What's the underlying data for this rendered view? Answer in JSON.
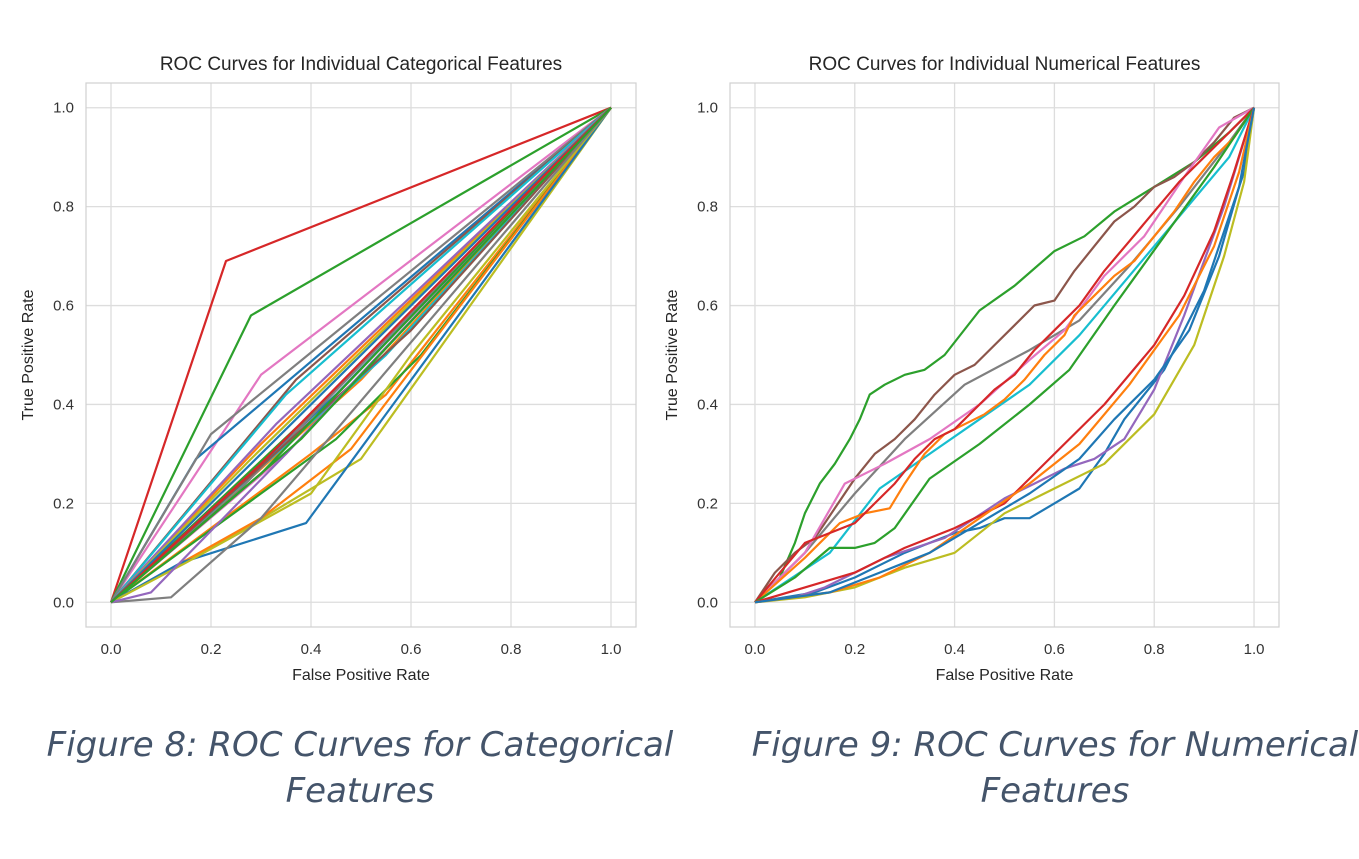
{
  "captions": {
    "left": "Figure 8: ROC Curves for Categorical Features",
    "right": "Figure 9: ROC Curves for Numerical Features"
  },
  "chart_data": [
    {
      "type": "line",
      "title": "ROC Curves for Individual Categorical Features",
      "xlabel": "False Positive Rate",
      "ylabel": "True Positive Rate",
      "xlim": [
        -0.05,
        1.05
      ],
      "ylim": [
        -0.05,
        1.05
      ],
      "xticks": [
        "0.0",
        "0.2",
        "0.4",
        "0.6",
        "0.8",
        "1.0"
      ],
      "yticks": [
        "0.0",
        "0.2",
        "0.4",
        "0.6",
        "0.8",
        "1.0"
      ],
      "grid": true,
      "legend": "none",
      "series": [
        {
          "color": "#d62728",
          "x": [
            0,
            0.23,
            1
          ],
          "y": [
            0,
            0.69,
            1
          ]
        },
        {
          "color": "#2ca02c",
          "x": [
            0,
            0.28,
            1
          ],
          "y": [
            0,
            0.58,
            1
          ]
        },
        {
          "color": "#e377c2",
          "x": [
            0,
            0.3,
            1
          ],
          "y": [
            0,
            0.46,
            1
          ]
        },
        {
          "color": "#1f77b4",
          "x": [
            0,
            0.17,
            1
          ],
          "y": [
            0,
            0.29,
            1
          ]
        },
        {
          "color": "#7f7f7f",
          "x": [
            0,
            0.2,
            1
          ],
          "y": [
            0,
            0.34,
            1
          ]
        },
        {
          "color": "#8c564b",
          "x": [
            0,
            0.37,
            1
          ],
          "y": [
            0,
            0.45,
            1
          ]
        },
        {
          "color": "#17becf",
          "x": [
            0,
            0.35,
            1
          ],
          "y": [
            0,
            0.42,
            1
          ]
        },
        {
          "color": "#ff7f0e",
          "x": [
            0,
            0.3,
            1
          ],
          "y": [
            0,
            0.32,
            1
          ]
        },
        {
          "color": "#9467bd",
          "x": [
            0,
            0.33,
            1
          ],
          "y": [
            0,
            0.36,
            1
          ]
        },
        {
          "color": "#bcbd22",
          "x": [
            0,
            0.28,
            1
          ],
          "y": [
            0,
            0.29,
            1
          ]
        },
        {
          "color": "#d62728",
          "x": [
            0,
            0.4,
            1
          ],
          "y": [
            0,
            0.38,
            1
          ]
        },
        {
          "color": "#2ca02c",
          "x": [
            0,
            0.42,
            1
          ],
          "y": [
            0,
            0.4,
            1
          ]
        },
        {
          "color": "#1f77b4",
          "x": [
            0,
            0.45,
            1
          ],
          "y": [
            0,
            0.42,
            1
          ]
        },
        {
          "color": "#ff7f0e",
          "x": [
            0,
            0.5,
            1
          ],
          "y": [
            0,
            0.45,
            1
          ]
        },
        {
          "color": "#17becf",
          "x": [
            0,
            0.55,
            1
          ],
          "y": [
            0,
            0.5,
            1
          ]
        },
        {
          "color": "#7f7f7f",
          "x": [
            0,
            0.25,
            1
          ],
          "y": [
            0,
            0.22,
            1
          ]
        },
        {
          "color": "#8c564b",
          "x": [
            0,
            0.6,
            1
          ],
          "y": [
            0,
            0.55,
            1
          ]
        },
        {
          "color": "#e377c2",
          "x": [
            0,
            0.35,
            1
          ],
          "y": [
            0,
            0.3,
            1
          ]
        },
        {
          "color": "#1f77b4",
          "x": [
            0,
            0.5,
            1
          ],
          "y": [
            0,
            0.5,
            1
          ]
        },
        {
          "color": "#2ca02c",
          "x": [
            0,
            0.3,
            1
          ],
          "y": [
            0,
            0.26,
            1
          ]
        },
        {
          "color": "#ff7f0e",
          "x": [
            0,
            0.4,
            0.55,
            1
          ],
          "y": [
            0,
            0.3,
            0.42,
            1
          ]
        },
        {
          "color": "#2ca02c",
          "x": [
            0,
            0.45,
            0.62,
            1
          ],
          "y": [
            0,
            0.33,
            0.5,
            1
          ]
        },
        {
          "color": "#bcbd22",
          "x": [
            0,
            0.22,
            0.5,
            1
          ],
          "y": [
            0,
            0.12,
            0.29,
            1
          ]
        },
        {
          "color": "#ff7f0e",
          "x": [
            0,
            0.3,
            0.48,
            1
          ],
          "y": [
            0,
            0.17,
            0.31,
            1
          ]
        },
        {
          "color": "#1f77b4",
          "x": [
            0,
            0.14,
            0.39,
            1
          ],
          "y": [
            0,
            0.08,
            0.16,
            1
          ]
        },
        {
          "color": "#bcbd22",
          "x": [
            0,
            0.15,
            0.4,
            0.6,
            1
          ],
          "y": [
            0,
            0.08,
            0.22,
            0.5,
            1
          ]
        },
        {
          "color": "#7f7f7f",
          "x": [
            0,
            0.12,
            0.3,
            1
          ],
          "y": [
            0,
            0.01,
            0.17,
            1
          ]
        },
        {
          "color": "#9467bd",
          "x": [
            0,
            0.08,
            0.35,
            1
          ],
          "y": [
            0,
            0.02,
            0.3,
            1
          ]
        },
        {
          "color": "#d62728",
          "x": [
            0,
            0.3,
            1
          ],
          "y": [
            0,
            0.28,
            1
          ]
        },
        {
          "color": "#2ca02c",
          "x": [
            0,
            0.38,
            1
          ],
          "y": [
            0,
            0.33,
            1
          ]
        }
      ]
    },
    {
      "type": "line",
      "title": "ROC Curves for Individual Numerical Features",
      "xlabel": "False Positive Rate",
      "ylabel": "True Positive Rate",
      "xlim": [
        -0.05,
        1.05
      ],
      "ylim": [
        -0.05,
        1.05
      ],
      "xticks": [
        "0.0",
        "0.2",
        "0.4",
        "0.6",
        "0.8",
        "1.0"
      ],
      "yticks": [
        "0.0",
        "0.2",
        "0.4",
        "0.6",
        "0.8",
        "1.0"
      ],
      "grid": true,
      "legend": "none",
      "series": [
        {
          "color": "#2ca02c",
          "x": [
            0,
            0.05,
            0.08,
            0.1,
            0.13,
            0.16,
            0.19,
            0.21,
            0.23,
            0.26,
            0.3,
            0.34,
            0.38,
            0.45,
            0.52,
            0.6,
            0.66,
            0.72,
            0.8,
            0.88,
            0.95,
            1
          ],
          "y": [
            0,
            0.05,
            0.12,
            0.18,
            0.24,
            0.28,
            0.33,
            0.37,
            0.42,
            0.44,
            0.46,
            0.47,
            0.5,
            0.59,
            0.64,
            0.71,
            0.74,
            0.79,
            0.84,
            0.89,
            0.95,
            1
          ]
        },
        {
          "color": "#8c564b",
          "x": [
            0,
            0.04,
            0.08,
            0.12,
            0.16,
            0.2,
            0.24,
            0.28,
            0.32,
            0.36,
            0.4,
            0.44,
            0.48,
            0.52,
            0.56,
            0.6,
            0.64,
            0.68,
            0.72,
            0.76,
            0.8,
            0.84,
            0.88,
            0.92,
            0.96,
            1
          ],
          "y": [
            0,
            0.06,
            0.1,
            0.13,
            0.19,
            0.25,
            0.3,
            0.33,
            0.37,
            0.42,
            0.46,
            0.48,
            0.52,
            0.56,
            0.6,
            0.61,
            0.67,
            0.72,
            0.77,
            0.8,
            0.84,
            0.86,
            0.89,
            0.93,
            0.98,
            1
          ]
        },
        {
          "color": "#7f7f7f",
          "x": [
            0,
            0.1,
            0.2,
            0.3,
            0.42,
            0.55,
            0.65,
            0.75,
            0.85,
            0.95,
            1
          ],
          "y": [
            0,
            0.1,
            0.22,
            0.33,
            0.44,
            0.51,
            0.57,
            0.68,
            0.8,
            0.93,
            1
          ]
        },
        {
          "color": "#e377c2",
          "x": [
            0,
            0.1,
            0.18,
            0.26,
            0.35,
            0.45,
            0.55,
            0.62,
            0.7,
            0.78,
            0.86,
            0.93,
            1
          ],
          "y": [
            0,
            0.1,
            0.24,
            0.28,
            0.33,
            0.4,
            0.49,
            0.55,
            0.66,
            0.74,
            0.86,
            0.96,
            1
          ]
        },
        {
          "color": "#17becf",
          "x": [
            0,
            0.15,
            0.25,
            0.35,
            0.45,
            0.55,
            0.65,
            0.75,
            0.85,
            0.95,
            1
          ],
          "y": [
            0,
            0.1,
            0.23,
            0.3,
            0.37,
            0.44,
            0.54,
            0.66,
            0.78,
            0.9,
            1
          ]
        },
        {
          "color": "#ff7f0e",
          "x": [
            0,
            0.1,
            0.17,
            0.22,
            0.27,
            0.3,
            0.34,
            0.38,
            0.42,
            0.46,
            0.5,
            0.54,
            0.58,
            0.62,
            0.64,
            0.68,
            0.72,
            0.76,
            0.8,
            0.84,
            0.88,
            0.92,
            0.96,
            1
          ],
          "y": [
            0,
            0.09,
            0.16,
            0.18,
            0.19,
            0.24,
            0.3,
            0.34,
            0.36,
            0.38,
            0.41,
            0.45,
            0.5,
            0.54,
            0.58,
            0.62,
            0.66,
            0.69,
            0.74,
            0.79,
            0.85,
            0.9,
            0.94,
            1
          ]
        },
        {
          "color": "#d62728",
          "x": [
            0,
            0.1,
            0.15,
            0.2,
            0.24,
            0.28,
            0.32,
            0.36,
            0.4,
            0.44,
            0.48,
            0.52,
            0.56,
            0.6,
            0.65,
            0.7,
            0.75,
            0.8,
            0.85,
            0.9,
            0.95,
            1
          ],
          "y": [
            0,
            0.12,
            0.14,
            0.16,
            0.2,
            0.24,
            0.29,
            0.33,
            0.35,
            0.39,
            0.43,
            0.46,
            0.51,
            0.55,
            0.6,
            0.67,
            0.73,
            0.79,
            0.85,
            0.9,
            0.95,
            1
          ]
        },
        {
          "color": "#2ca02c",
          "x": [
            0,
            0.08,
            0.15,
            0.2,
            0.24,
            0.28,
            0.35,
            0.45,
            0.55,
            0.63,
            0.72,
            0.82,
            0.92,
            1
          ],
          "y": [
            0,
            0.05,
            0.11,
            0.11,
            0.12,
            0.15,
            0.25,
            0.32,
            0.4,
            0.47,
            0.6,
            0.74,
            0.88,
            1
          ]
        },
        {
          "color": "#1f77b4",
          "x": [
            0,
            0.06,
            0.12,
            0.2,
            0.26,
            0.3,
            0.35,
            0.4,
            0.45,
            0.5,
            0.55,
            0.6,
            0.65,
            0.7,
            0.74,
            0.78,
            0.82,
            0.86,
            0.9,
            0.93,
            0.96,
            0.98,
            1
          ],
          "y": [
            0,
            0.01,
            0.02,
            0.05,
            0.08,
            0.1,
            0.12,
            0.14,
            0.15,
            0.17,
            0.17,
            0.2,
            0.23,
            0.3,
            0.37,
            0.42,
            0.47,
            0.55,
            0.63,
            0.72,
            0.81,
            0.87,
            1
          ]
        },
        {
          "color": "#9467bd",
          "x": [
            0,
            0.08,
            0.14,
            0.2,
            0.26,
            0.32,
            0.38,
            0.44,
            0.5,
            0.56,
            0.62,
            0.68,
            0.74,
            0.8,
            0.86,
            0.9,
            0.94,
            0.97,
            1
          ],
          "y": [
            0,
            0.01,
            0.03,
            0.06,
            0.09,
            0.11,
            0.13,
            0.17,
            0.21,
            0.24,
            0.27,
            0.29,
            0.33,
            0.43,
            0.58,
            0.69,
            0.8,
            0.9,
            1
          ]
        },
        {
          "color": "#bcbd22",
          "x": [
            0,
            0.1,
            0.2,
            0.3,
            0.4,
            0.5,
            0.6,
            0.7,
            0.8,
            0.88,
            0.94,
            0.98,
            1
          ],
          "y": [
            0,
            0.01,
            0.03,
            0.07,
            0.1,
            0.18,
            0.23,
            0.28,
            0.38,
            0.52,
            0.7,
            0.85,
            1
          ]
        },
        {
          "color": "#d62728",
          "x": [
            0,
            0.1,
            0.2,
            0.3,
            0.4,
            0.5,
            0.6,
            0.7,
            0.8,
            0.86,
            0.92,
            0.96,
            1
          ],
          "y": [
            0,
            0.03,
            0.06,
            0.11,
            0.15,
            0.2,
            0.3,
            0.4,
            0.52,
            0.62,
            0.75,
            0.87,
            1
          ]
        },
        {
          "color": "#ff7f0e",
          "x": [
            0,
            0.15,
            0.25,
            0.35,
            0.45,
            0.55,
            0.65,
            0.75,
            0.85,
            0.92,
            0.97,
            1
          ],
          "y": [
            0,
            0.02,
            0.05,
            0.1,
            0.17,
            0.24,
            0.32,
            0.44,
            0.58,
            0.72,
            0.87,
            1
          ]
        },
        {
          "color": "#1f77b4",
          "x": [
            0,
            0.15,
            0.25,
            0.35,
            0.45,
            0.55,
            0.65,
            0.72,
            0.8,
            0.87,
            0.93,
            0.97,
            1
          ],
          "y": [
            0,
            0.02,
            0.06,
            0.1,
            0.16,
            0.22,
            0.29,
            0.37,
            0.45,
            0.55,
            0.7,
            0.84,
            1
          ]
        }
      ]
    }
  ]
}
